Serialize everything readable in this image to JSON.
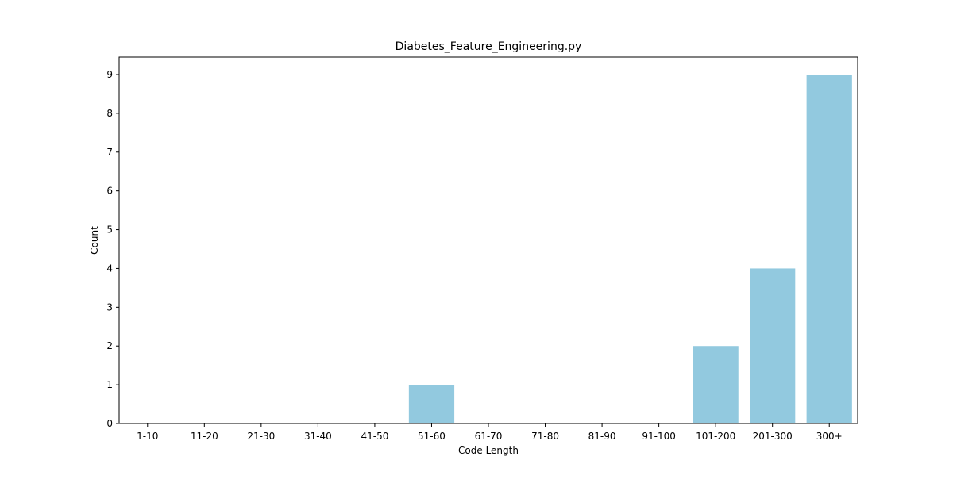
{
  "chart_data": {
    "type": "bar",
    "title": "Diabetes_Feature_Engineering.py",
    "xlabel": "Code Length",
    "ylabel": "Count",
    "categories": [
      "1-10",
      "11-20",
      "21-30",
      "31-40",
      "41-50",
      "51-60",
      "61-70",
      "71-80",
      "81-90",
      "91-100",
      "101-200",
      "201-300",
      "300+"
    ],
    "values": [
      0,
      0,
      0,
      0,
      0,
      1,
      0,
      0,
      0,
      0,
      2,
      4,
      9
    ],
    "yticks": [
      "0",
      "1",
      "2",
      "3",
      "4",
      "5",
      "6",
      "7",
      "8",
      "9"
    ],
    "ylim": [
      0,
      9.45
    ],
    "grid": false,
    "bar_color": "#92c9df"
  }
}
